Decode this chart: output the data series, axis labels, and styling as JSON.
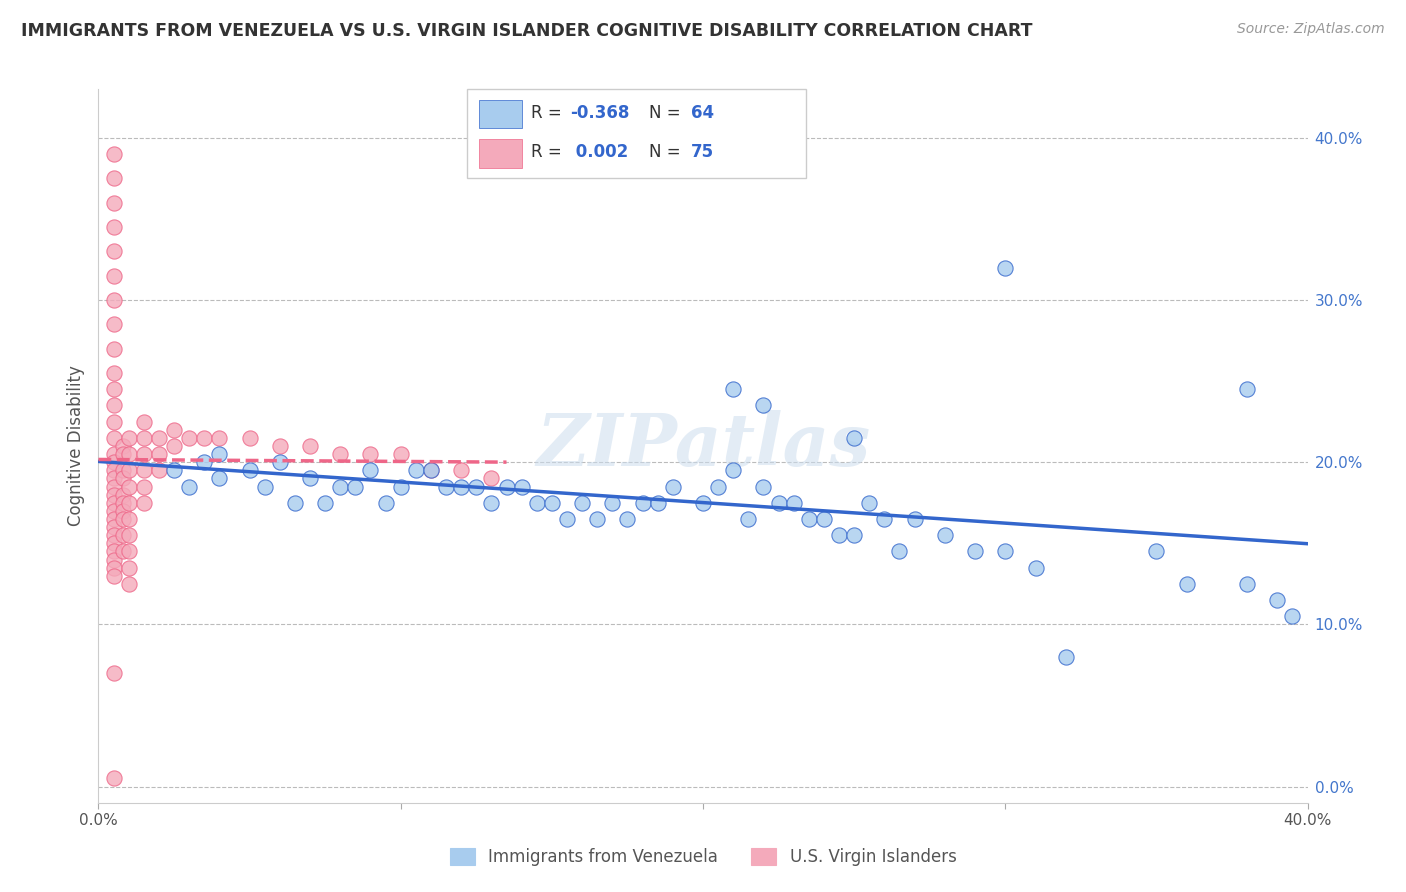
{
  "title": "IMMIGRANTS FROM VENEZUELA VS U.S. VIRGIN ISLANDER COGNITIVE DISABILITY CORRELATION CHART",
  "source": "Source: ZipAtlas.com",
  "ylabel": "Cognitive Disability",
  "xlim": [
    0.0,
    0.4
  ],
  "ylim": [
    -0.01,
    0.43
  ],
  "ytick_values": [
    0.0,
    0.1,
    0.2,
    0.3,
    0.4
  ],
  "legend_r_blue": "-0.368",
  "legend_n_blue": "64",
  "legend_r_pink": "0.002",
  "legend_n_pink": "75",
  "blue_color": "#A8CCEE",
  "pink_color": "#F4AABB",
  "line_blue_color": "#3366CC",
  "line_pink_color": "#EE6688",
  "watermark": "ZIPatlas",
  "blue_scatter_x": [
    0.025,
    0.03,
    0.035,
    0.04,
    0.04,
    0.05,
    0.055,
    0.06,
    0.065,
    0.07,
    0.075,
    0.08,
    0.085,
    0.09,
    0.095,
    0.1,
    0.105,
    0.11,
    0.115,
    0.12,
    0.125,
    0.13,
    0.135,
    0.14,
    0.145,
    0.15,
    0.155,
    0.16,
    0.165,
    0.17,
    0.175,
    0.18,
    0.185,
    0.19,
    0.2,
    0.205,
    0.21,
    0.215,
    0.22,
    0.225,
    0.23,
    0.235,
    0.24,
    0.245,
    0.25,
    0.255,
    0.26,
    0.265,
    0.27,
    0.28,
    0.29,
    0.3,
    0.31,
    0.32,
    0.35,
    0.36,
    0.38,
    0.39,
    0.395,
    0.21,
    0.22,
    0.25,
    0.3,
    0.38
  ],
  "blue_scatter_y": [
    0.195,
    0.185,
    0.2,
    0.19,
    0.205,
    0.195,
    0.185,
    0.2,
    0.175,
    0.19,
    0.175,
    0.185,
    0.185,
    0.195,
    0.175,
    0.185,
    0.195,
    0.195,
    0.185,
    0.185,
    0.185,
    0.175,
    0.185,
    0.185,
    0.175,
    0.175,
    0.165,
    0.175,
    0.165,
    0.175,
    0.165,
    0.175,
    0.175,
    0.185,
    0.175,
    0.185,
    0.195,
    0.165,
    0.185,
    0.175,
    0.175,
    0.165,
    0.165,
    0.155,
    0.155,
    0.175,
    0.165,
    0.145,
    0.165,
    0.155,
    0.145,
    0.145,
    0.135,
    0.08,
    0.145,
    0.125,
    0.125,
    0.115,
    0.105,
    0.245,
    0.235,
    0.215,
    0.32,
    0.245
  ],
  "pink_scatter_x": [
    0.005,
    0.005,
    0.005,
    0.005,
    0.005,
    0.005,
    0.005,
    0.005,
    0.005,
    0.005,
    0.005,
    0.005,
    0.005,
    0.005,
    0.005,
    0.005,
    0.005,
    0.005,
    0.005,
    0.005,
    0.005,
    0.005,
    0.005,
    0.005,
    0.005,
    0.005,
    0.005,
    0.005,
    0.005,
    0.005,
    0.008,
    0.008,
    0.008,
    0.008,
    0.008,
    0.008,
    0.008,
    0.008,
    0.008,
    0.008,
    0.01,
    0.01,
    0.01,
    0.01,
    0.01,
    0.01,
    0.01,
    0.01,
    0.01,
    0.01,
    0.015,
    0.015,
    0.015,
    0.015,
    0.015,
    0.015,
    0.02,
    0.02,
    0.02,
    0.025,
    0.025,
    0.03,
    0.035,
    0.04,
    0.05,
    0.06,
    0.07,
    0.08,
    0.09,
    0.1,
    0.11,
    0.12,
    0.13,
    0.005,
    0.005
  ],
  "pink_scatter_y": [
    0.375,
    0.36,
    0.345,
    0.33,
    0.315,
    0.3,
    0.285,
    0.27,
    0.255,
    0.245,
    0.235,
    0.225,
    0.215,
    0.205,
    0.2,
    0.195,
    0.19,
    0.185,
    0.18,
    0.175,
    0.17,
    0.165,
    0.16,
    0.155,
    0.15,
    0.145,
    0.14,
    0.135,
    0.13,
    0.07,
    0.21,
    0.205,
    0.195,
    0.19,
    0.18,
    0.175,
    0.17,
    0.165,
    0.155,
    0.145,
    0.215,
    0.205,
    0.195,
    0.185,
    0.175,
    0.165,
    0.155,
    0.145,
    0.135,
    0.125,
    0.225,
    0.215,
    0.205,
    0.195,
    0.185,
    0.175,
    0.215,
    0.205,
    0.195,
    0.22,
    0.21,
    0.215,
    0.215,
    0.215,
    0.215,
    0.21,
    0.21,
    0.205,
    0.205,
    0.205,
    0.195,
    0.195,
    0.19,
    0.39,
    0.005
  ]
}
